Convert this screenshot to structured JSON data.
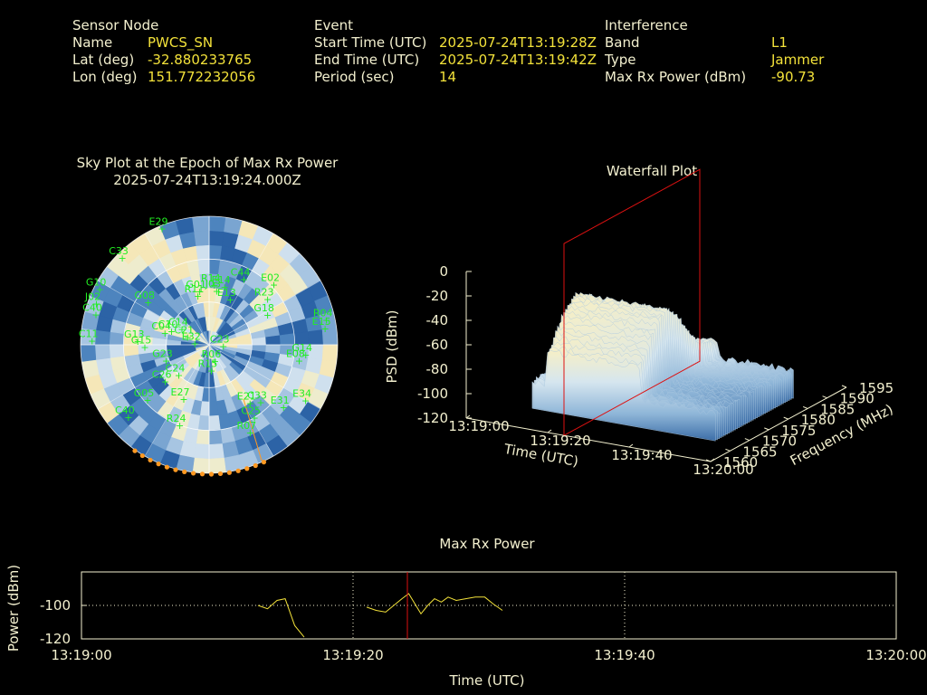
{
  "header": {
    "sensor": {
      "heading": "Sensor Node",
      "rows": [
        {
          "label": "Name",
          "value": "PWCS_SN"
        },
        {
          "label": "Lat (deg)",
          "value": "-32.880233765"
        },
        {
          "label": "Lon (deg)",
          "value": "151.772232056"
        }
      ]
    },
    "event": {
      "heading": "Event",
      "rows": [
        {
          "label": "Start Time (UTC)",
          "value": "2025-07-24T13:19:28Z"
        },
        {
          "label": "End Time (UTC)",
          "value": "2025-07-24T13:19:42Z"
        },
        {
          "label": "Period (sec)",
          "value": "14"
        }
      ]
    },
    "interference": {
      "heading": "Interference",
      "rows": [
        {
          "label": "Band",
          "value": "L1"
        },
        {
          "label": "Type",
          "value": "Jammer"
        },
        {
          "label": "Max Rx Power (dBm)",
          "value": "-90.73"
        }
      ]
    }
  },
  "colors": {
    "text": "#f3f0cf",
    "value": "#f3e23a",
    "satellite": "#22ee22",
    "marker": "#ff9922",
    "cursor": "#dd1111",
    "line": "#f3e23a"
  },
  "chart_data": [
    {
      "type": "scatter",
      "title": "Sky Plot at the Epoch of Max Rx Power",
      "subtitle": "2025-07-24T13:19:24.000Z",
      "satellites": [
        {
          "id": "E29",
          "az": 338,
          "el": 2
        },
        {
          "id": "C33",
          "az": 315,
          "el": 4
        },
        {
          "id": "G10",
          "az": 297,
          "el": 4
        },
        {
          "id": "J02",
          "az": 290,
          "el": 6
        },
        {
          "id": "C40",
          "az": 285,
          "el": 8
        },
        {
          "id": "C11",
          "az": 272,
          "el": 8
        },
        {
          "id": "G08",
          "az": 305,
          "el": 38
        },
        {
          "id": "G01",
          "az": 350,
          "el": 52
        },
        {
          "id": "R11",
          "az": 347,
          "el": 55
        },
        {
          "id": "R14",
          "az": 5,
          "el": 48
        },
        {
          "id": "J03",
          "az": 8,
          "el": 52
        },
        {
          "id": "E14",
          "az": 15,
          "el": 48
        },
        {
          "id": "C44",
          "az": 28,
          "el": 38
        },
        {
          "id": "E13",
          "az": 25,
          "el": 55
        },
        {
          "id": "E02",
          "az": 47,
          "el": 28
        },
        {
          "id": "R23",
          "az": 52,
          "el": 38
        },
        {
          "id": "G18",
          "az": 63,
          "el": 44
        },
        {
          "id": "R04",
          "az": 78,
          "el": 6
        },
        {
          "id": "E15",
          "az": 82,
          "el": 8
        },
        {
          "id": "G14",
          "az": 96,
          "el": 22
        },
        {
          "id": "E08",
          "az": 100,
          "el": 26
        },
        {
          "id": "C04",
          "az": 285,
          "el": 58
        },
        {
          "id": "C10",
          "az": 290,
          "el": 62
        },
        {
          "id": "C14",
          "az": 300,
          "el": 68
        },
        {
          "id": "G13",
          "az": 273,
          "el": 40
        },
        {
          "id": "G15",
          "az": 268,
          "el": 45
        },
        {
          "id": "G23",
          "az": 250,
          "el": 58
        },
        {
          "id": "C21",
          "az": 290,
          "el": 74
        },
        {
          "id": "E32",
          "az": 275,
          "el": 80
        },
        {
          "id": "C23",
          "az": 95,
          "el": 80
        },
        {
          "id": "R06",
          "az": 160,
          "el": 78
        },
        {
          "id": "R15",
          "az": 175,
          "el": 72
        },
        {
          "id": "E27",
          "az": 205,
          "el": 48
        },
        {
          "id": "C26",
          "az": 230,
          "el": 50
        },
        {
          "id": "C24",
          "az": 225,
          "el": 60
        },
        {
          "id": "G05",
          "az": 228,
          "el": 32
        },
        {
          "id": "E21",
          "az": 145,
          "el": 40
        },
        {
          "id": "C33b",
          "az": 138,
          "el": 36
        },
        {
          "id": "E34",
          "az": 120,
          "el": 12
        },
        {
          "id": "E31",
          "az": 130,
          "el": 22
        },
        {
          "id": "C25",
          "az": 148,
          "el": 30
        },
        {
          "id": "R07",
          "az": 155,
          "el": 22
        },
        {
          "id": "R24",
          "az": 200,
          "el": 30
        },
        {
          "id": "C40b",
          "az": 228,
          "el": 14
        }
      ],
      "markers_azimuth_range": [
        155,
        215
      ]
    },
    {
      "type": "heatmap",
      "title": "Waterfall Plot",
      "xlabel": "Time (UTC)",
      "ylabel": "Frequency (MHz)",
      "zlabel": "PSD (dBm)",
      "time_ticks": [
        "13:19:00",
        "13:19:20",
        "13:19:40",
        "13:20:00"
      ],
      "freq_ticks": [
        1560,
        1565,
        1570,
        1575,
        1580,
        1585,
        1590,
        1595
      ],
      "psd_ticks": [
        0,
        -20,
        -40,
        -60,
        -80,
        -100,
        -120
      ],
      "zlim": [
        -120,
        0
      ],
      "cursor_time": "13:19:24"
    },
    {
      "type": "line",
      "title": "Max Rx Power",
      "xlabel": "Time (UTC)",
      "ylabel": "Power (dBm)",
      "x_ticks": [
        "13:19:00",
        "13:19:20",
        "13:19:40",
        "13:20:00"
      ],
      "y_ticks": [
        -100,
        -120
      ],
      "ylim": [
        -120,
        -80
      ],
      "xlim_sec": [
        0,
        60
      ],
      "cursor_sec": 24,
      "series": [
        {
          "x": [
            13.0,
            13.7,
            14.4,
            15.0,
            15.7,
            16.4
          ],
          "y": [
            -100,
            -102,
            -97,
            -96,
            -112,
            -119
          ]
        },
        {
          "x": [
            21.0,
            21.7,
            22.4,
            23.0,
            23.6,
            24.1,
            25.0,
            25.5,
            26.0,
            26.5,
            27.0,
            27.6,
            28.3,
            29.0,
            29.7,
            30.3,
            31.0
          ],
          "y": [
            -101,
            -103,
            -104,
            -100,
            -96,
            -93,
            -105,
            -100,
            -96,
            -98,
            -95,
            -97,
            -96,
            -95,
            -95,
            -99,
            -103
          ]
        }
      ]
    }
  ]
}
